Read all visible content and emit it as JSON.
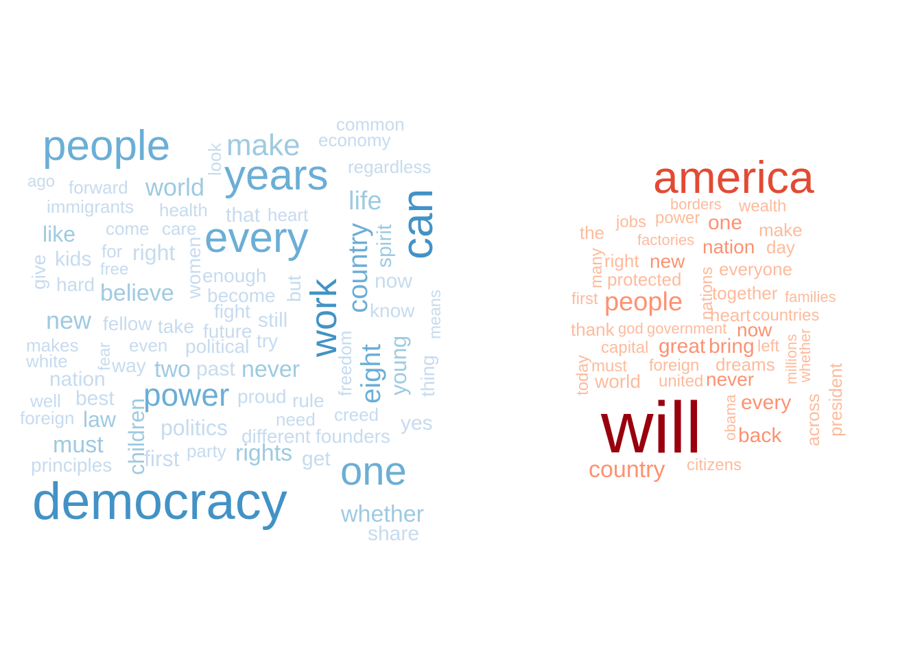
{
  "clouds": [
    {
      "words": [
        {
          "text": "common",
          "color": "#c6dbef"
        },
        {
          "text": "economy",
          "color": "#c6dbef"
        },
        {
          "text": "people",
          "color": "#6baed6"
        },
        {
          "text": "make",
          "color": "#9ecae1"
        },
        {
          "text": "look",
          "color": "#c6dbef"
        },
        {
          "text": "years",
          "color": "#6baed6"
        },
        {
          "text": "regardless",
          "color": "#c6dbef"
        },
        {
          "text": "ago",
          "color": "#c6dbef"
        },
        {
          "text": "forward",
          "color": "#c6dbef"
        },
        {
          "text": "world",
          "color": "#9ecae1"
        },
        {
          "text": "life",
          "color": "#9ecae1"
        },
        {
          "text": "can",
          "color": "#4292c6"
        },
        {
          "text": "immigrants",
          "color": "#c6dbef"
        },
        {
          "text": "health",
          "color": "#c6dbef"
        },
        {
          "text": "that",
          "color": "#c6dbef"
        },
        {
          "text": "heart",
          "color": "#c6dbef"
        },
        {
          "text": "like",
          "color": "#9ecae1"
        },
        {
          "text": "come",
          "color": "#c6dbef"
        },
        {
          "text": "care",
          "color": "#c6dbef"
        },
        {
          "text": "every",
          "color": "#6baed6"
        },
        {
          "text": "country",
          "color": "#6baed6"
        },
        {
          "text": "spirit",
          "color": "#9ecae1"
        },
        {
          "text": "give",
          "color": "#c6dbef"
        },
        {
          "text": "kids",
          "color": "#c6dbef"
        },
        {
          "text": "for",
          "color": "#c6dbef"
        },
        {
          "text": "right",
          "color": "#c6dbef"
        },
        {
          "text": "free",
          "color": "#c6dbef"
        },
        {
          "text": "women",
          "color": "#c6dbef"
        },
        {
          "text": "hard",
          "color": "#c6dbef"
        },
        {
          "text": "enough",
          "color": "#c6dbef"
        },
        {
          "text": "but",
          "color": "#c6dbef"
        },
        {
          "text": "work",
          "color": "#4292c6"
        },
        {
          "text": "now",
          "color": "#c6dbef"
        },
        {
          "text": "believe",
          "color": "#9ecae1"
        },
        {
          "text": "become",
          "color": "#c6dbef"
        },
        {
          "text": "means",
          "color": "#c6dbef"
        },
        {
          "text": "fight",
          "color": "#c6dbef"
        },
        {
          "text": "know",
          "color": "#c6dbef"
        },
        {
          "text": "new",
          "color": "#9ecae1"
        },
        {
          "text": "fellow",
          "color": "#c6dbef"
        },
        {
          "text": "take",
          "color": "#c6dbef"
        },
        {
          "text": "still",
          "color": "#c6dbef"
        },
        {
          "text": "future",
          "color": "#c6dbef"
        },
        {
          "text": "freedom",
          "color": "#c6dbef"
        },
        {
          "text": "eight",
          "color": "#6baed6"
        },
        {
          "text": "young",
          "color": "#9ecae1"
        },
        {
          "text": "thing",
          "color": "#c6dbef"
        },
        {
          "text": "makes",
          "color": "#c6dbef"
        },
        {
          "text": "fear",
          "color": "#c6dbef"
        },
        {
          "text": "even",
          "color": "#c6dbef"
        },
        {
          "text": "political",
          "color": "#c6dbef"
        },
        {
          "text": "try",
          "color": "#c6dbef"
        },
        {
          "text": "white",
          "color": "#c6dbef"
        },
        {
          "text": "way",
          "color": "#c6dbef"
        },
        {
          "text": "two",
          "color": "#9ecae1"
        },
        {
          "text": "past",
          "color": "#c6dbef"
        },
        {
          "text": "never",
          "color": "#9ecae1"
        },
        {
          "text": "nation",
          "color": "#c6dbef"
        },
        {
          "text": "power",
          "color": "#6baed6"
        },
        {
          "text": "well",
          "color": "#c6dbef"
        },
        {
          "text": "best",
          "color": "#c6dbef"
        },
        {
          "text": "children",
          "color": "#9ecae1"
        },
        {
          "text": "proud",
          "color": "#c6dbef"
        },
        {
          "text": "rule",
          "color": "#c6dbef"
        },
        {
          "text": "creed",
          "color": "#c6dbef"
        },
        {
          "text": "foreign",
          "color": "#c6dbef"
        },
        {
          "text": "law",
          "color": "#9ecae1"
        },
        {
          "text": "need",
          "color": "#c6dbef"
        },
        {
          "text": "yes",
          "color": "#c6dbef"
        },
        {
          "text": "politics",
          "color": "#c6dbef"
        },
        {
          "text": "different",
          "color": "#c6dbef"
        },
        {
          "text": "founders",
          "color": "#c6dbef"
        },
        {
          "text": "must",
          "color": "#9ecae1"
        },
        {
          "text": "party",
          "color": "#c6dbef"
        },
        {
          "text": "rights",
          "color": "#9ecae1"
        },
        {
          "text": "first",
          "color": "#c6dbef"
        },
        {
          "text": "get",
          "color": "#c6dbef"
        },
        {
          "text": "one",
          "color": "#6baed6"
        },
        {
          "text": "principles",
          "color": "#c6dbef"
        },
        {
          "text": "democracy",
          "color": "#4292c6"
        },
        {
          "text": "whether",
          "color": "#9ecae1"
        },
        {
          "text": "share",
          "color": "#c6dbef"
        }
      ]
    },
    {
      "words": [
        {
          "text": "america",
          "color": "#e34a33"
        },
        {
          "text": "borders",
          "color": "#fdbb9d"
        },
        {
          "text": "wealth",
          "color": "#fdbb9d"
        },
        {
          "text": "jobs",
          "color": "#fdbb9d"
        },
        {
          "text": "power",
          "color": "#fdbb9d"
        },
        {
          "text": "one",
          "color": "#fc9272"
        },
        {
          "text": "the",
          "color": "#fdbb9d"
        },
        {
          "text": "make",
          "color": "#fdbb9d"
        },
        {
          "text": "factories",
          "color": "#fdbb9d"
        },
        {
          "text": "nation",
          "color": "#fc9272"
        },
        {
          "text": "day",
          "color": "#fdbb9d"
        },
        {
          "text": "many",
          "color": "#fdbb9d"
        },
        {
          "text": "right",
          "color": "#fdbb9d"
        },
        {
          "text": "new",
          "color": "#fc9272"
        },
        {
          "text": "nations",
          "color": "#fdbb9d"
        },
        {
          "text": "everyone",
          "color": "#fdbb9d"
        },
        {
          "text": "protected",
          "color": "#fdbb9d"
        },
        {
          "text": "first",
          "color": "#fdbb9d"
        },
        {
          "text": "people",
          "color": "#fc9272"
        },
        {
          "text": "together",
          "color": "#fdbb9d"
        },
        {
          "text": "families",
          "color": "#fdbb9d"
        },
        {
          "text": "heart",
          "color": "#fdbb9d"
        },
        {
          "text": "countries",
          "color": "#fdbb9d"
        },
        {
          "text": "thank",
          "color": "#fdbb9d"
        },
        {
          "text": "god",
          "color": "#fdbb9d"
        },
        {
          "text": "government",
          "color": "#fdbb9d"
        },
        {
          "text": "now",
          "color": "#fc9272"
        },
        {
          "text": "capital",
          "color": "#fdbb9d"
        },
        {
          "text": "great",
          "color": "#fc9272"
        },
        {
          "text": "bring",
          "color": "#fc9272"
        },
        {
          "text": "left",
          "color": "#fdbb9d"
        },
        {
          "text": "millions",
          "color": "#fdbb9d"
        },
        {
          "text": "whether",
          "color": "#fdbb9d"
        },
        {
          "text": "today",
          "color": "#fdbb9d"
        },
        {
          "text": "must",
          "color": "#fdbb9d"
        },
        {
          "text": "foreign",
          "color": "#fdbb9d"
        },
        {
          "text": "dreams",
          "color": "#fdbb9d"
        },
        {
          "text": "president",
          "color": "#fdbb9d"
        },
        {
          "text": "world",
          "color": "#fdbb9d"
        },
        {
          "text": "united",
          "color": "#fdbb9d"
        },
        {
          "text": "never",
          "color": "#fc9272"
        },
        {
          "text": "will",
          "color": "#99000d"
        },
        {
          "text": "obama",
          "color": "#fdbb9d"
        },
        {
          "text": "every",
          "color": "#fc9272"
        },
        {
          "text": "across",
          "color": "#fdbb9d"
        },
        {
          "text": "back",
          "color": "#fc9272"
        },
        {
          "text": "country",
          "color": "#fc9272"
        },
        {
          "text": "citizens",
          "color": "#fdbb9d"
        }
      ]
    }
  ]
}
